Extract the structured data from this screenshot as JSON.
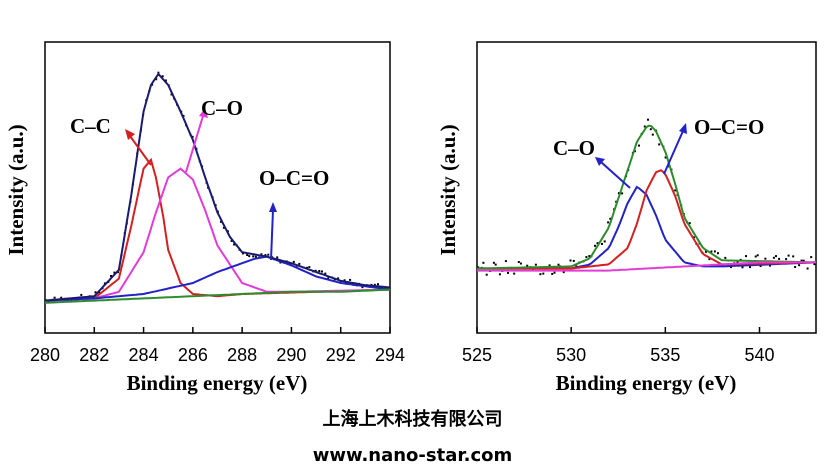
{
  "chart_data": [
    {
      "type": "line",
      "xlabel": "Binding energy (eV)",
      "ylabel": "Intensity (a.u.)",
      "xlim": [
        280,
        294
      ],
      "xticks": [
        280,
        282,
        284,
        286,
        288,
        290,
        292,
        294
      ],
      "ylim": [
        0,
        1.1
      ],
      "series": [
        {
          "name": "C–C",
          "color": "#d42020",
          "x": [
            280,
            282,
            283,
            283.5,
            284,
            284.3,
            284.5,
            284.8,
            285,
            285.5,
            286,
            287,
            288,
            294
          ],
          "y": [
            0.02,
            0.03,
            0.12,
            0.36,
            0.62,
            0.66,
            0.58,
            0.4,
            0.25,
            0.1,
            0.05,
            0.04,
            0.05,
            0.07
          ]
        },
        {
          "name": "C–O",
          "color": "#e13cd8",
          "x": [
            280,
            282,
            283,
            284,
            284.5,
            285,
            285.5,
            286,
            286.5,
            287,
            288,
            289,
            290,
            294
          ],
          "y": [
            0.02,
            0.03,
            0.06,
            0.24,
            0.42,
            0.58,
            0.62,
            0.57,
            0.43,
            0.27,
            0.1,
            0.06,
            0.06,
            0.07
          ]
        },
        {
          "name": "O–C=O",
          "color": "#2222c8",
          "x": [
            280,
            282,
            284,
            286,
            287,
            288,
            288.5,
            289,
            290,
            291,
            292,
            294
          ],
          "y": [
            0.02,
            0.03,
            0.05,
            0.1,
            0.15,
            0.19,
            0.21,
            0.22,
            0.18,
            0.13,
            0.1,
            0.07
          ]
        },
        {
          "color": "#1a1a6e",
          "x": [
            280,
            282,
            283,
            283.5,
            284,
            284.3,
            284.6,
            285,
            285.5,
            286,
            286.5,
            287,
            287.5,
            288,
            289,
            290,
            291,
            292,
            293,
            294
          ],
          "y": [
            0.02,
            0.04,
            0.16,
            0.5,
            0.88,
            1.0,
            1.05,
            1.0,
            0.88,
            0.75,
            0.58,
            0.42,
            0.31,
            0.24,
            0.22,
            0.19,
            0.15,
            0.11,
            0.09,
            0.08
          ]
        },
        {
          "color": "#2e8b2e",
          "x": [
            280,
            282,
            284,
            286,
            288,
            290,
            292,
            294
          ],
          "y": [
            0.01,
            0.02,
            0.03,
            0.04,
            0.05,
            0.06,
            0.06,
            0.07
          ]
        }
      ],
      "annotations": [
        "C–C",
        "C–O",
        "O–C=O"
      ]
    },
    {
      "type": "line",
      "xlabel": "Binding energy (eV)",
      "ylabel": "Intensity (a.u.)",
      "xlim": [
        525,
        543
      ],
      "xticks": [
        525,
        530,
        535,
        540
      ],
      "ylim": [
        0,
        1.1
      ],
      "series": [
        {
          "name": "C–O",
          "color": "#2222c8",
          "x": [
            525,
            530,
            531,
            532,
            532.5,
            533,
            533.5,
            534,
            534.5,
            535,
            536,
            537,
            538,
            543
          ],
          "y": [
            0.3,
            0.3,
            0.32,
            0.4,
            0.5,
            0.62,
            0.7,
            0.66,
            0.56,
            0.44,
            0.33,
            0.31,
            0.31,
            0.33
          ]
        },
        {
          "name": "O–C=O",
          "color": "#d42020",
          "x": [
            525,
            530,
            532,
            533,
            533.5,
            534,
            534.5,
            534.8,
            535,
            535.5,
            536,
            537,
            538,
            543
          ],
          "y": [
            0.3,
            0.3,
            0.32,
            0.4,
            0.52,
            0.68,
            0.77,
            0.78,
            0.76,
            0.66,
            0.52,
            0.37,
            0.32,
            0.33
          ]
        },
        {
          "color": "#2e8b2e",
          "x": [
            525,
            530,
            531,
            532,
            533,
            533.5,
            534,
            534.2,
            534.5,
            535,
            535.5,
            536,
            537,
            538,
            543
          ],
          "y": [
            0.3,
            0.31,
            0.35,
            0.5,
            0.78,
            0.92,
            0.99,
            1.0,
            0.97,
            0.87,
            0.72,
            0.55,
            0.4,
            0.34,
            0.33
          ]
        },
        {
          "color": "#e13cd8",
          "x": [
            525,
            530,
            532,
            534,
            536,
            538,
            540,
            543
          ],
          "y": [
            0.29,
            0.29,
            0.29,
            0.3,
            0.31,
            0.32,
            0.33,
            0.33
          ]
        }
      ],
      "annotations": [
        "C–O",
        "O–C=O"
      ]
    }
  ],
  "footer": {
    "company": "上海上木科技有限公司",
    "url": "www.nano-star.com"
  }
}
